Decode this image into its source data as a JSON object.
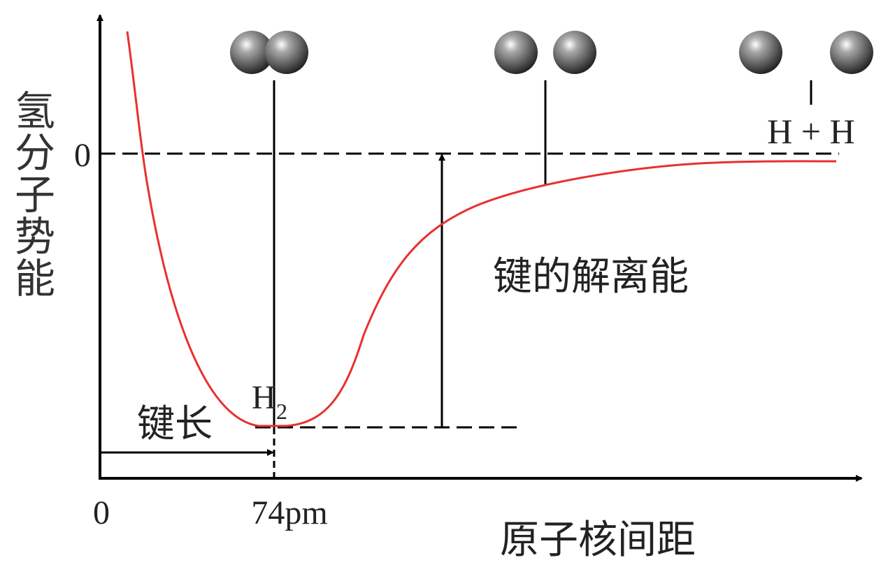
{
  "axes": {
    "y_label": "氢分子势能",
    "y_zero": "0",
    "x_zero": "0",
    "x_bond": "74pm",
    "x_label": "原子核间距"
  },
  "labels": {
    "separated": "H + H",
    "molecule": "H",
    "molecule_sub": "2",
    "dissociation": "键的解离能",
    "bond_length": "键长"
  }
}
